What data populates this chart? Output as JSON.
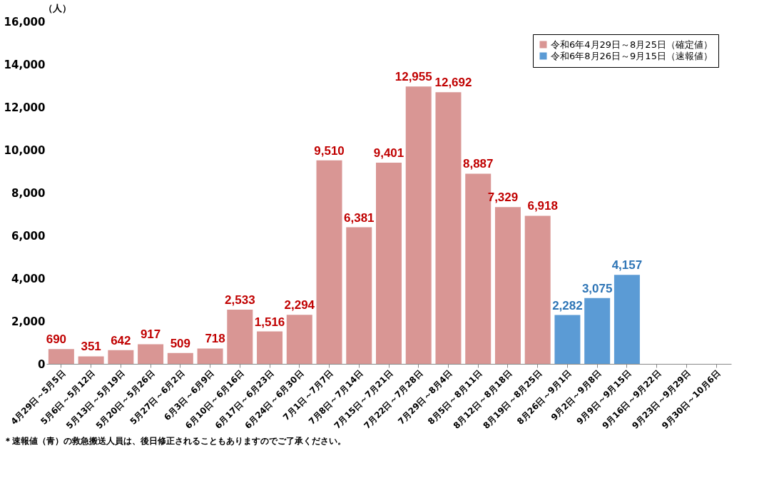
{
  "chart_data": {
    "type": "bar",
    "ylabel": "（人）",
    "categories": [
      "4月29日～5月5日",
      "5月6日～5月12日",
      "5月13日～5月19日",
      "5月20日～5月26日",
      "5月27日～6月2日",
      "6月3日～6月9日",
      "6月10日～6月16日",
      "6月17日～6月23日",
      "6月24日～6月30日",
      "7月1日～7月7日",
      "7月8日～7月14日",
      "7月15日～7月21日",
      "7月22日～7月28日",
      "7月29日～8月4日",
      "8月5日～8月11日",
      "8月12日～8月18日",
      "8月19日～8月25日",
      "8月26日～9月1日",
      "9月2日～9月8日",
      "9月9日～9月15日",
      "9月16日～9月22日",
      "9月23日～9月29日",
      "9月30日～10月6日"
    ],
    "series": [
      {
        "name": "令和6年4月29日～8月25日（確定値）",
        "color": "#d99694",
        "values": [
          690,
          351,
          642,
          917,
          509,
          718,
          2533,
          1516,
          2294,
          9510,
          6381,
          9401,
          12955,
          12692,
          8887,
          7329,
          6918,
          null,
          null,
          null,
          null,
          null,
          null
        ],
        "value_labels": [
          "690",
          "351",
          "642",
          "917",
          "509",
          "718",
          "2,533",
          "1,516",
          "2,294",
          "9,510",
          "6,381",
          "9,401",
          "12,955",
          "12,692",
          "8,887",
          "7,329",
          "6,918",
          null,
          null,
          null,
          null,
          null,
          null
        ]
      },
      {
        "name": "令和6年8月26日～9月15日（速報値）",
        "color": "#5b9bd5",
        "values": [
          null,
          null,
          null,
          null,
          null,
          null,
          null,
          null,
          null,
          null,
          null,
          null,
          null,
          null,
          null,
          null,
          null,
          2282,
          3075,
          4157,
          null,
          null,
          null
        ],
        "value_labels": [
          null,
          null,
          null,
          null,
          null,
          null,
          null,
          null,
          null,
          null,
          null,
          null,
          null,
          null,
          null,
          null,
          null,
          "2,282",
          "3,075",
          "4,157",
          null,
          null,
          null
        ]
      }
    ],
    "ylim": [
      0,
      16000
    ],
    "yticks": [
      {
        "value": 0,
        "label": "0"
      },
      {
        "value": 2000,
        "label": "2,000"
      },
      {
        "value": 4000,
        "label": "4,000"
      },
      {
        "value": 6000,
        "label": "6,000"
      },
      {
        "value": 8000,
        "label": "8,000"
      },
      {
        "value": 10000,
        "label": "10,000"
      },
      {
        "value": 12000,
        "label": "12,000"
      },
      {
        "value": 14000,
        "label": "14,000"
      },
      {
        "value": 16000,
        "label": "16,000"
      }
    ],
    "grid": false,
    "legend": "top right",
    "annotations": [
      "＊速報値（青）の救急搬送人員は、後日修正されることもありますのでご了承ください。"
    ]
  }
}
